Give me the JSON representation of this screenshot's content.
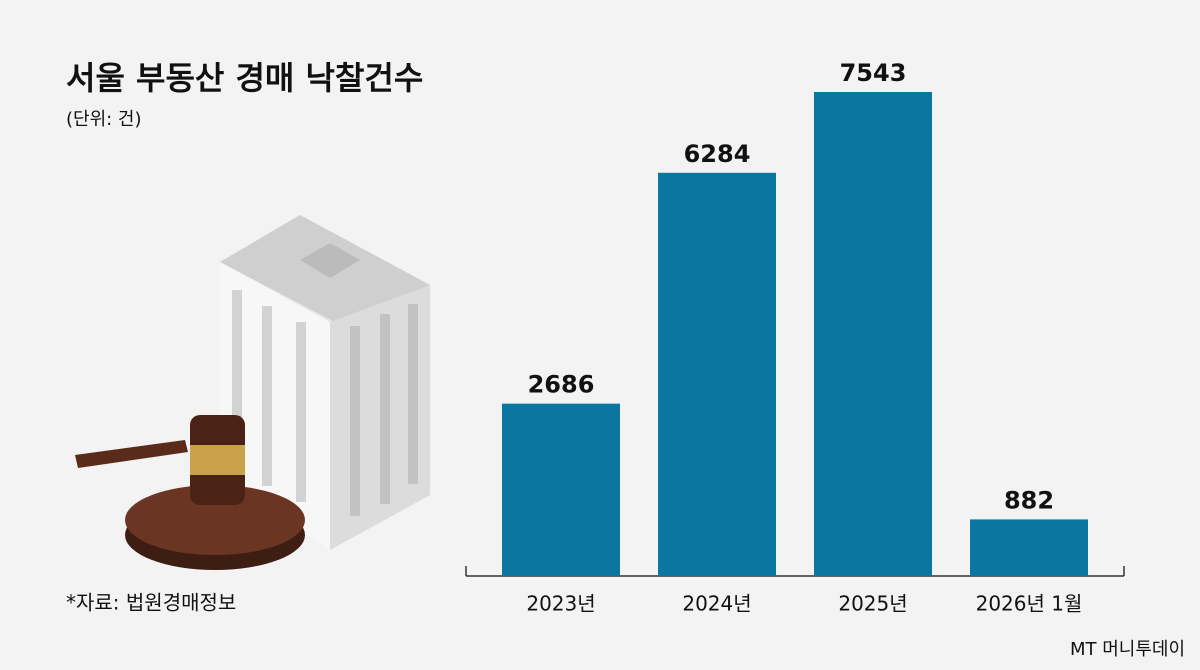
{
  "chart_data": {
    "type": "bar",
    "title": "서울 부동산 경매 낙찰건수",
    "subtitle": "(단위: 건)",
    "categories": [
      "2023년",
      "2024년",
      "2025년",
      "2026년 1월"
    ],
    "values": [
      2686,
      6284,
      7543,
      882
    ],
    "color": "#0b76a0",
    "source": "*자료: 법원경매정보",
    "watermark": "MT 머니투데이"
  }
}
